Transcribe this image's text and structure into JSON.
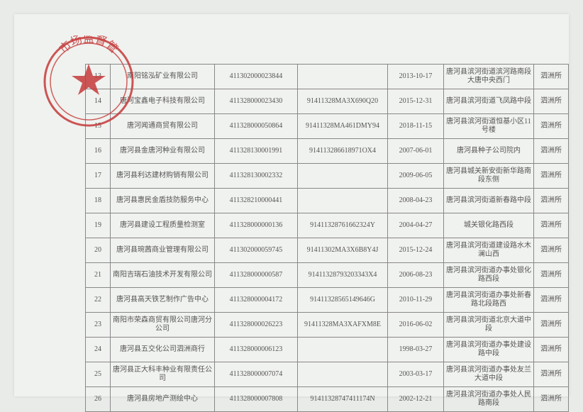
{
  "stamp": {
    "outer_color": "#c43a3a",
    "inner_color": "#d85050",
    "star_color": "#c43a3a",
    "text": "市场监督管"
  },
  "table": {
    "rows": [
      {
        "idx": "13",
        "name": "南阳铭泓矿业有限公司",
        "reg": "411302000023844",
        "code": "",
        "date": "2013-10-17",
        "addr": "唐河县滨河街道滨河路南段大唐中央西门",
        "off": "泗洲所"
      },
      {
        "idx": "14",
        "name": "唐河宝鑫电子科技有限公司",
        "reg": "411328000023430",
        "code": "91411328MA3X690Q20",
        "date": "2015-12-31",
        "addr": "唐河县滨河街道飞凤路中段",
        "off": "泗洲所"
      },
      {
        "idx": "15",
        "name": "唐河闻通商贸有限公司",
        "reg": "411328000050864",
        "code": "91411328MA461DMY94",
        "date": "2018-11-15",
        "addr": "唐河县滨河街道恒基小区11号楼",
        "off": "泗洲所"
      },
      {
        "idx": "16",
        "name": "唐河县金唐河种业有限公司",
        "reg": "411328130001991",
        "code": "914113286618971OX4",
        "date": "2007-06-01",
        "addr": "唐河县种子公司院内",
        "off": "泗洲所"
      },
      {
        "idx": "17",
        "name": "唐河县利达建材购销有限公司",
        "reg": "411328130002332",
        "code": "",
        "date": "2009-06-05",
        "addr": "唐河县城关新安街新华路南段东侧",
        "off": "泗洲所"
      },
      {
        "idx": "18",
        "name": "唐河县惠民金盾技防服务中心",
        "reg": "411328210000441",
        "code": "",
        "date": "2008-04-23",
        "addr": "唐河县滨河街道新春路中段",
        "off": "泗洲所"
      },
      {
        "idx": "19",
        "name": "唐河县建设工程质量检测室",
        "reg": "411328000000136",
        "code": "91411328761662324Y",
        "date": "2004-04-27",
        "addr": "城关银化路西段",
        "off": "泗洲所"
      },
      {
        "idx": "20",
        "name": "唐河县琬茜商业管理有限公司",
        "reg": "411302000059745",
        "code": "91411302MA3X6B8Y4J",
        "date": "2015-12-24",
        "addr": "唐河县滨河街道建设路水木澜山西",
        "off": "泗洲所"
      },
      {
        "idx": "21",
        "name": "南阳吉瑞石油技术开发有限公司",
        "reg": "411328000000587",
        "code": "91411328793203343X4",
        "date": "2006-08-23",
        "addr": "唐河县滨河街道办事处银化路西段",
        "off": "泗洲所"
      },
      {
        "idx": "22",
        "name": "唐河县高天铁艺制作广告中心",
        "reg": "411328000004172",
        "code": "91411328565149646G",
        "date": "2010-11-29",
        "addr": "唐河县滨河街道办事处新春路北段路西",
        "off": "泗洲所"
      },
      {
        "idx": "23",
        "name": "南阳市荣森商贸有限公司唐河分公司",
        "reg": "411328000026223",
        "code": "91411328MA3XAFXM8E",
        "date": "2016-06-02",
        "addr": "唐河县滨河街道北京大道中段",
        "off": "泗洲所"
      },
      {
        "idx": "24",
        "name": "唐河县五交化公司泗洲商行",
        "reg": "411328000006123",
        "code": "",
        "date": "1998-03-27",
        "addr": "唐河县滨河街道办事处建设路中段",
        "off": "泗洲所"
      },
      {
        "idx": "25",
        "name": "唐河县正大科丰种业有限责任公司",
        "reg": "411328000007074",
        "code": "",
        "date": "2003-03-17",
        "addr": "唐河县滨河街道办事处友兰大道中段",
        "off": "泗洲所"
      },
      {
        "idx": "26",
        "name": "唐河县房地产测绘中心",
        "reg": "411328000007808",
        "code": "91411328747411174N",
        "date": "2002-12-21",
        "addr": "唐河县滨河街道办事处人民路南段",
        "off": "泗洲所"
      }
    ]
  }
}
